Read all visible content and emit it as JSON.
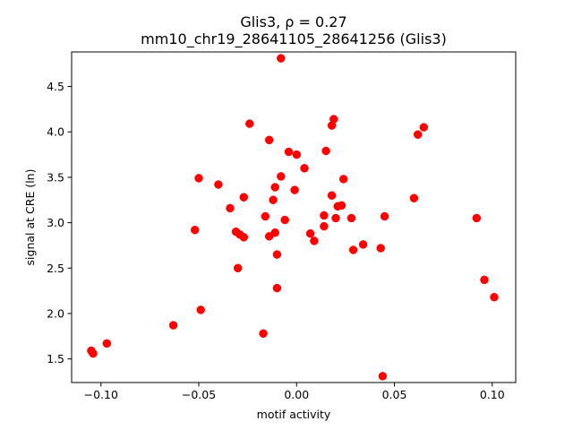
{
  "chart_data": {
    "type": "scatter",
    "title_line1": "Glis3, ρ = 0.27",
    "title_line2": "mm10_chr19_28641105_28641256 (Glis3)",
    "xlabel": "motif activity",
    "ylabel": "signal at CRE (ln)",
    "xlim": [
      -0.115,
      0.112
    ],
    "ylim": [
      1.24,
      4.88
    ],
    "xticks": [
      -0.1,
      -0.05,
      0.0,
      0.05,
      0.1
    ],
    "xtick_labels": [
      "−0.10",
      "−0.05",
      "0.00",
      "0.05",
      "0.10"
    ],
    "yticks": [
      1.5,
      2.0,
      2.5,
      3.0,
      3.5,
      4.0,
      4.5
    ],
    "ytick_labels": [
      "1.5",
      "2.0",
      "2.5",
      "3.0",
      "3.5",
      "4.0",
      "4.5"
    ],
    "grid": false,
    "marker_color": "#ff0000",
    "points": [
      {
        "x": -0.105,
        "y": 1.59
      },
      {
        "x": -0.104,
        "y": 1.56
      },
      {
        "x": -0.097,
        "y": 1.67
      },
      {
        "x": -0.063,
        "y": 1.87
      },
      {
        "x": -0.052,
        "y": 2.92
      },
      {
        "x": -0.05,
        "y": 3.49
      },
      {
        "x": -0.049,
        "y": 2.04
      },
      {
        "x": -0.04,
        "y": 3.42
      },
      {
        "x": -0.034,
        "y": 3.16
      },
      {
        "x": -0.031,
        "y": 2.9
      },
      {
        "x": -0.03,
        "y": 2.5
      },
      {
        "x": -0.029,
        "y": 2.87
      },
      {
        "x": -0.027,
        "y": 2.84
      },
      {
        "x": -0.027,
        "y": 3.28
      },
      {
        "x": -0.024,
        "y": 4.09
      },
      {
        "x": -0.017,
        "y": 1.78
      },
      {
        "x": -0.016,
        "y": 3.07
      },
      {
        "x": -0.014,
        "y": 3.91
      },
      {
        "x": -0.014,
        "y": 2.85
      },
      {
        "x": -0.012,
        "y": 3.25
      },
      {
        "x": -0.011,
        "y": 3.39
      },
      {
        "x": -0.011,
        "y": 2.89
      },
      {
        "x": -0.01,
        "y": 2.65
      },
      {
        "x": -0.01,
        "y": 2.28
      },
      {
        "x": -0.008,
        "y": 3.51
      },
      {
        "x": -0.008,
        "y": 4.81
      },
      {
        "x": -0.006,
        "y": 3.03
      },
      {
        "x": -0.004,
        "y": 3.78
      },
      {
        "x": -0.001,
        "y": 3.36
      },
      {
        "x": 0.0,
        "y": 3.75
      },
      {
        "x": 0.004,
        "y": 3.6
      },
      {
        "x": 0.007,
        "y": 2.88
      },
      {
        "x": 0.009,
        "y": 2.8
      },
      {
        "x": 0.014,
        "y": 3.08
      },
      {
        "x": 0.014,
        "y": 2.96
      },
      {
        "x": 0.015,
        "y": 3.79
      },
      {
        "x": 0.018,
        "y": 4.07
      },
      {
        "x": 0.018,
        "y": 3.3
      },
      {
        "x": 0.019,
        "y": 4.14
      },
      {
        "x": 0.02,
        "y": 3.05
      },
      {
        "x": 0.021,
        "y": 3.18
      },
      {
        "x": 0.023,
        "y": 3.19
      },
      {
        "x": 0.024,
        "y": 3.48
      },
      {
        "x": 0.028,
        "y": 3.05
      },
      {
        "x": 0.029,
        "y": 2.7
      },
      {
        "x": 0.034,
        "y": 2.76
      },
      {
        "x": 0.043,
        "y": 2.72
      },
      {
        "x": 0.044,
        "y": 1.31
      },
      {
        "x": 0.045,
        "y": 3.07
      },
      {
        "x": 0.06,
        "y": 3.27
      },
      {
        "x": 0.062,
        "y": 3.97
      },
      {
        "x": 0.065,
        "y": 4.05
      },
      {
        "x": 0.092,
        "y": 3.05
      },
      {
        "x": 0.096,
        "y": 2.37
      },
      {
        "x": 0.101,
        "y": 2.18
      }
    ]
  }
}
